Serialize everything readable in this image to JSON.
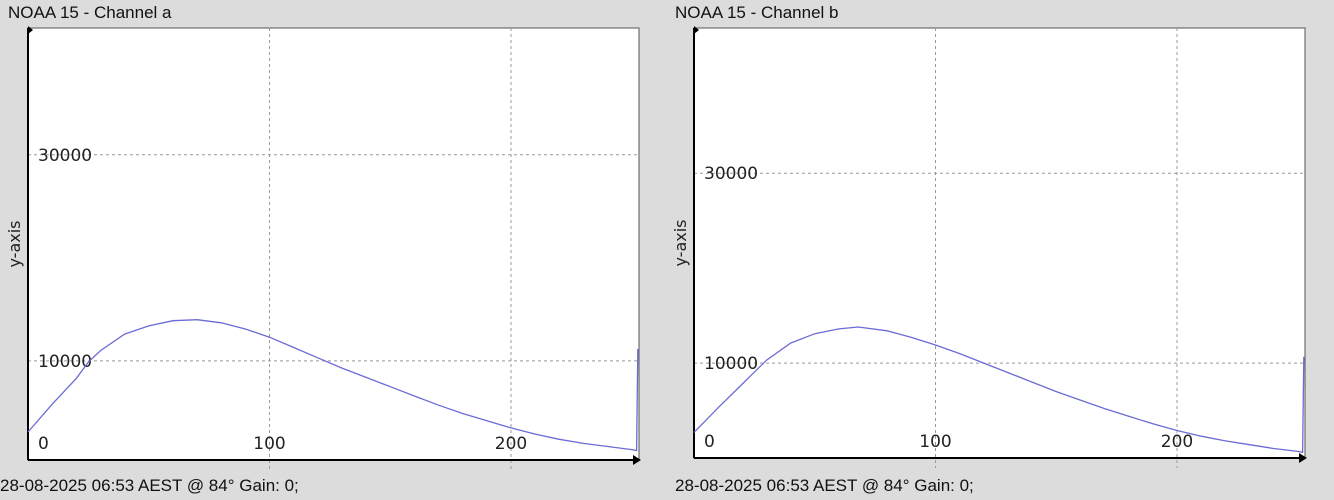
{
  "chart_data": [
    {
      "type": "line",
      "title": "NOAA 15 - Channel a",
      "footer": "28-08-2025 06:53 AEST @ 84° Gain: 0;",
      "xlabel": "",
      "ylabel": "y-axis",
      "xlim": [
        0,
        253
      ],
      "ylim": [
        0,
        42300
      ],
      "x_ticks": [
        0,
        100,
        200
      ],
      "y_ticks": [
        10000,
        30000
      ],
      "grid": true,
      "line_color": "#6b6bd6",
      "series": [
        {
          "x": [
            0,
            10,
            20,
            25,
            30,
            40,
            50,
            60,
            70,
            80,
            90,
            100,
            110,
            120,
            130,
            140,
            150,
            160,
            170,
            180,
            190,
            200,
            210,
            220,
            230,
            240,
            250,
            252,
            252.5,
            253
          ],
          "y": [
            3100,
            5800,
            8300,
            9900,
            11000,
            12600,
            13400,
            13900,
            14000,
            13700,
            13100,
            12300,
            11300,
            10300,
            9300,
            8400,
            7500,
            6600,
            5700,
            4900,
            4200,
            3500,
            2900,
            2400,
            2000,
            1700,
            1400,
            1300,
            11100,
            11100
          ]
        }
      ]
    },
    {
      "type": "line",
      "title": "NOAA 15 - Channel b",
      "footer": "28-08-2025 06:53 AEST @ 84° Gain: 0;",
      "xlabel": "",
      "ylabel": "y-axis",
      "xlim": [
        0,
        253
      ],
      "ylim": [
        0,
        45300
      ],
      "x_ticks": [
        0,
        100,
        200
      ],
      "y_ticks": [
        10000,
        30000
      ],
      "grid": true,
      "line_color": "#6b6bd6",
      "series": [
        {
          "x": [
            0,
            10,
            20,
            30,
            40,
            50,
            60,
            68,
            80,
            90,
            100,
            110,
            120,
            130,
            140,
            150,
            160,
            170,
            180,
            190,
            200,
            210,
            220,
            230,
            240,
            250,
            252,
            252.5,
            253
          ],
          "y": [
            2700,
            5300,
            7800,
            10300,
            12100,
            13100,
            13600,
            13800,
            13400,
            12700,
            11900,
            11000,
            10000,
            9000,
            8000,
            7000,
            6100,
            5200,
            4400,
            3600,
            2900,
            2300,
            1800,
            1400,
            1000,
            700,
            600,
            10600,
            10600
          ]
        }
      ]
    }
  ]
}
